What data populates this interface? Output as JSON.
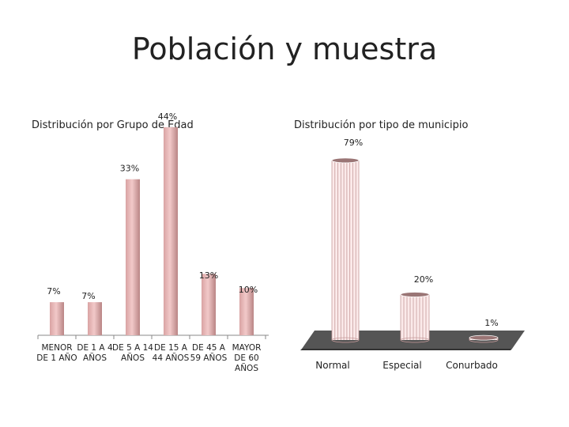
{
  "slide": {
    "title": "Población y muestra"
  },
  "chart_data": [
    {
      "type": "bar",
      "title": "Distribución por Grupo de Edad",
      "categories": [
        [
          "MENOR",
          "DE 1 AÑO"
        ],
        [
          "DE 1 A 4",
          "AÑOS"
        ],
        [
          "DE 5 A 14",
          "AÑOS"
        ],
        [
          "DE 15 A",
          "44 AÑOS"
        ],
        [
          "DE 45 A",
          "59 AÑOS"
        ],
        [
          "MAYOR",
          "DE 60",
          "AÑOS"
        ]
      ],
      "values": [
        7,
        7,
        33,
        44,
        13,
        10
      ],
      "value_labels": [
        "7%",
        "7%",
        "33%",
        "44%",
        "13%",
        "10%"
      ],
      "unit": "%",
      "ylim": [
        0,
        50
      ],
      "grid": false,
      "colors": {
        "bar_light": "#f2c9c9",
        "bar_mid": "#d9a3a3",
        "bar_dark": "#b98585"
      }
    },
    {
      "type": "bar",
      "subtype": "3d-cylinder",
      "title": "Distribución por tipo de municipio",
      "categories": [
        "Normal",
        "Especial",
        "Conurbado"
      ],
      "values": [
        79,
        20,
        1
      ],
      "value_labels": [
        "79%",
        "20%",
        "1%"
      ],
      "unit": "%",
      "ylim": [
        0,
        80
      ],
      "grid": false,
      "colors": {
        "floor": "#555555",
        "cylinder": "#fbeaea",
        "cylinder_line": "#c59a9a",
        "cylinder_top": "#9a7575"
      }
    }
  ]
}
